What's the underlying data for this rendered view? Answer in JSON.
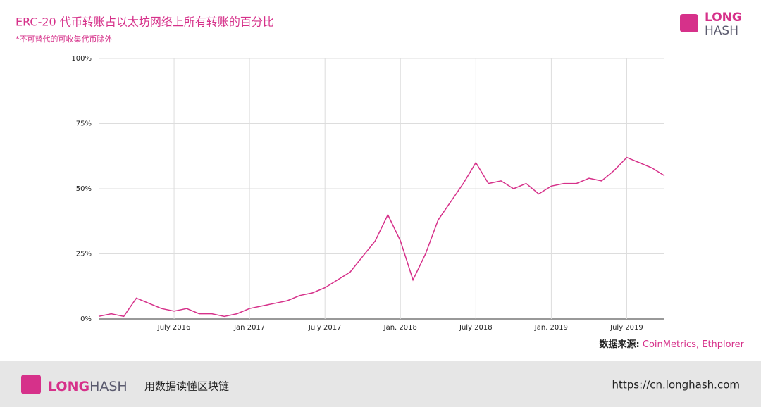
{
  "chart_data": {
    "type": "line",
    "title": "ERC-20 代币转账占以太坊网络上所有转账的百分比",
    "subtitle": "*不可替代的可收集代币除外",
    "source_label": "数据来源:",
    "source": "CoinMetrics, Ethplorer",
    "x": [
      "2016-01",
      "2016-02",
      "2016-03",
      "2016-04",
      "2016-05",
      "2016-06",
      "2016-07",
      "2016-08",
      "2016-09",
      "2016-10",
      "2016-11",
      "2016-12",
      "2017-01",
      "2017-02",
      "2017-03",
      "2017-04",
      "2017-05",
      "2017-06",
      "2017-07",
      "2017-08",
      "2017-09",
      "2017-10",
      "2017-11",
      "2017-12",
      "2018-01",
      "2018-02",
      "2018-03",
      "2018-04",
      "2018-05",
      "2018-06",
      "2018-07",
      "2018-08",
      "2018-09",
      "2018-10",
      "2018-11",
      "2018-12",
      "2019-01",
      "2019-02",
      "2019-03",
      "2019-04",
      "2019-05",
      "2019-06",
      "2019-07",
      "2019-08",
      "2019-09",
      "2019-10"
    ],
    "series": [
      {
        "color": "#d6318a",
        "values": [
          1,
          2,
          1,
          8,
          6,
          4,
          3,
          4,
          2,
          2,
          1,
          2,
          4,
          5,
          6,
          7,
          9,
          10,
          12,
          15,
          18,
          24,
          30,
          40,
          30,
          15,
          25,
          38,
          45,
          52,
          60,
          52,
          53,
          50,
          52,
          48,
          51,
          52,
          52,
          54,
          53,
          57,
          62,
          60,
          58,
          55
        ]
      }
    ],
    "xlim": [
      "2016-01",
      "2019-10"
    ],
    "xticks": [
      {
        "value": "2016-07",
        "label": "July 2016"
      },
      {
        "value": "2017-01",
        "label": "Jan 2017"
      },
      {
        "value": "2017-07",
        "label": "July 2017"
      },
      {
        "value": "2018-01",
        "label": "Jan. 2018"
      },
      {
        "value": "2018-07",
        "label": "July 2018"
      },
      {
        "value": "2019-01",
        "label": "Jan. 2019"
      },
      {
        "value": "2019-07",
        "label": "July 2019"
      }
    ],
    "ylim": [
      0,
      100
    ],
    "yticks": [
      {
        "value": 0,
        "label": "0%"
      },
      {
        "value": 25,
        "label": "25%"
      },
      {
        "value": 50,
        "label": "50%"
      },
      {
        "value": 75,
        "label": "75%"
      },
      {
        "value": 100,
        "label": "100%"
      }
    ],
    "grid": true
  },
  "logo": {
    "top": "LONG",
    "bottom": "HASH"
  },
  "footer": {
    "brand_a": "LONG",
    "brand_b": "HASH",
    "tagline": "用数据读懂区块链",
    "url": "https://cn.longhash.com"
  }
}
